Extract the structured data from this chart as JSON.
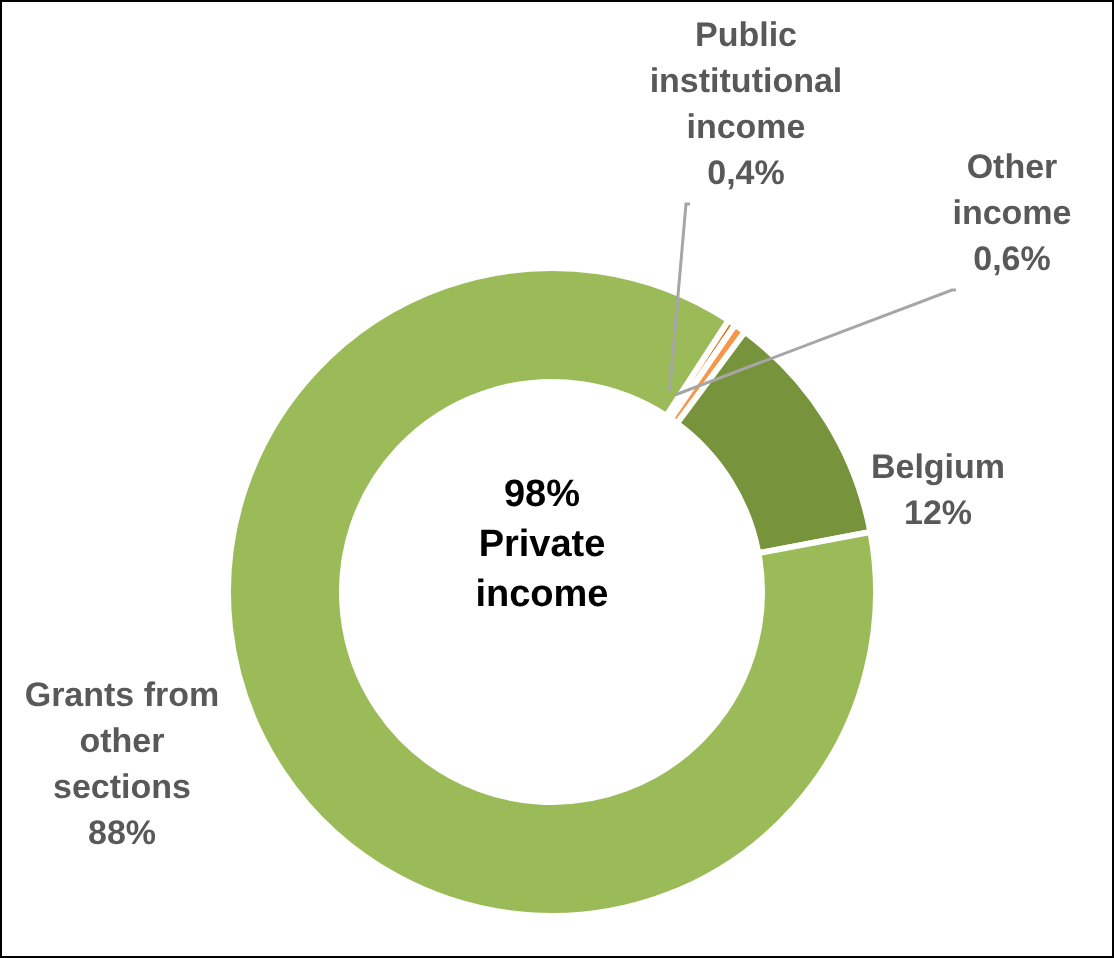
{
  "chart_data": {
    "type": "donut",
    "categories": [
      "Public institutional income",
      "Other income",
      "Belgium",
      "Grants from other sections"
    ],
    "values": [
      0.4,
      0.6,
      12,
      88
    ],
    "value_labels": [
      "0,4%",
      "0,6%",
      "12%",
      "88%"
    ],
    "colors": [
      "#e46c0a",
      "#f79646",
      "#77933c",
      "#9bbb59"
    ],
    "annotations": [
      "98%\nPrivate income"
    ]
  }
}
